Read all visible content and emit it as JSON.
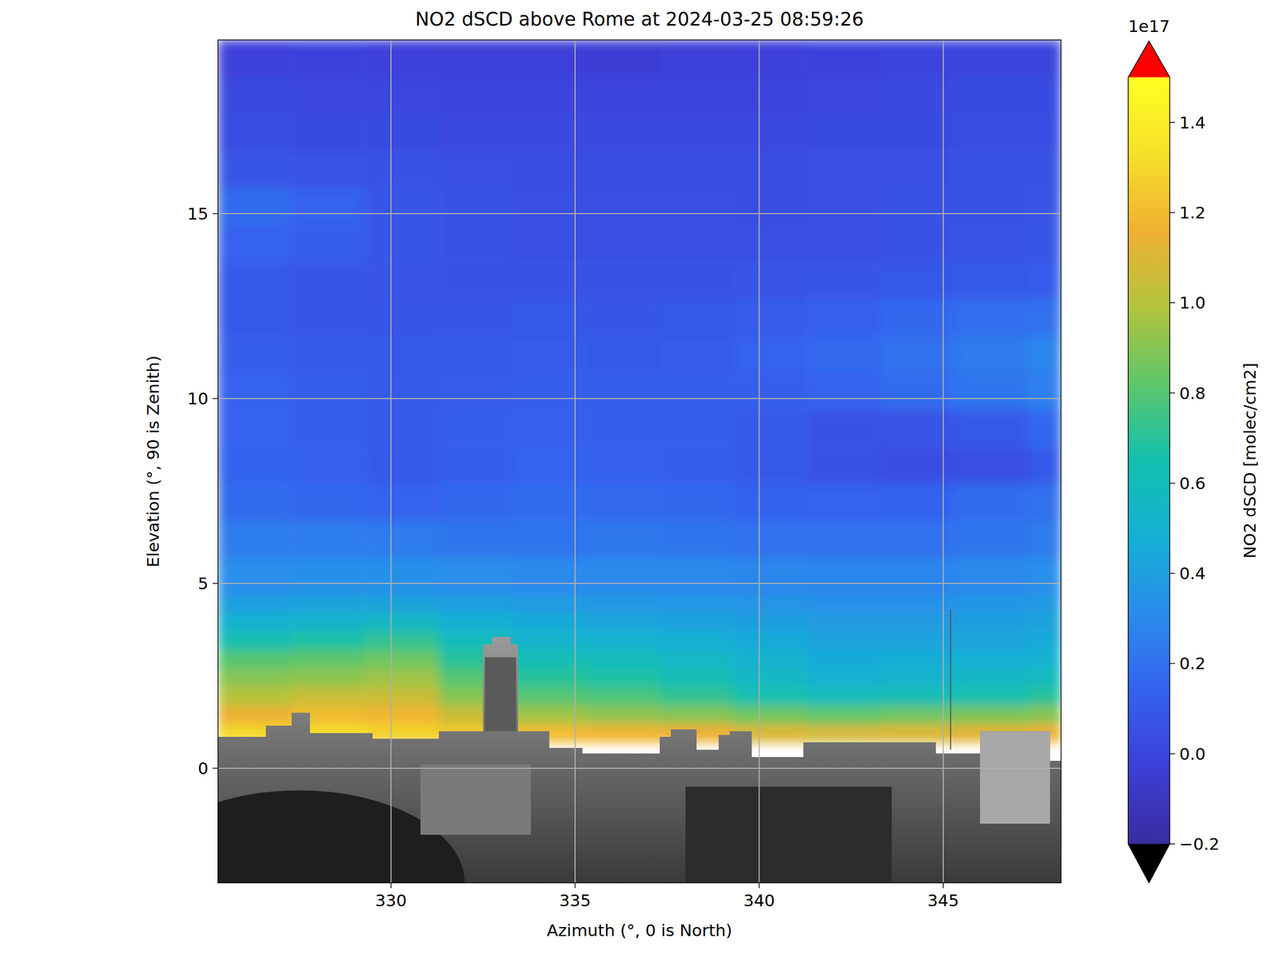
{
  "chart_data": {
    "type": "heatmap",
    "title": "NO2 dSCD above Rome at 2024-03-25 08:59:26",
    "x_label": "Azimuth (°, 0 is North)",
    "y_label": "Elevation (°, 90 is Zenith)",
    "xlim": [
      325.3,
      348.2
    ],
    "ylim": [
      -3.1,
      19.7
    ],
    "xticks": [
      330,
      335,
      340,
      345
    ],
    "yticks": [
      0,
      5,
      10,
      15
    ],
    "grid": true,
    "x_edges": [
      325.3,
      327.3,
      329.3,
      331.3,
      333.3,
      335.3,
      337.3,
      339.3,
      341.3,
      343.3,
      345.3,
      347.3,
      348.2
    ],
    "y_edges": [
      0.7,
      1.2,
      1.7,
      2.2,
      2.7,
      3.2,
      3.7,
      4.2,
      4.7,
      5.7,
      6.7,
      7.7,
      8.7,
      9.7,
      10.7,
      11.7,
      12.7,
      13.7,
      14.7,
      15.7,
      16.7,
      17.7,
      18.7,
      19.7
    ],
    "values": [
      [
        1.3,
        1.32,
        1.28,
        1.25,
        1.2,
        1.18,
        1.15,
        1.1,
        1.08,
        1.1,
        1.12,
        1.15
      ],
      [
        1.15,
        1.2,
        1.18,
        1.05,
        0.95,
        0.92,
        0.9,
        0.85,
        0.82,
        0.85,
        0.88,
        0.9
      ],
      [
        1.0,
        1.05,
        1.05,
        0.9,
        0.8,
        0.78,
        0.72,
        0.65,
        0.6,
        0.62,
        0.65,
        0.7
      ],
      [
        0.9,
        0.92,
        0.95,
        0.8,
        0.7,
        0.68,
        0.62,
        0.55,
        0.5,
        0.52,
        0.55,
        0.58
      ],
      [
        0.8,
        0.82,
        0.85,
        0.7,
        0.62,
        0.6,
        0.55,
        0.5,
        0.45,
        0.47,
        0.48,
        0.5
      ],
      [
        0.65,
        0.68,
        0.72,
        0.6,
        0.52,
        0.5,
        0.48,
        0.45,
        0.42,
        0.42,
        0.43,
        0.45
      ],
      [
        0.5,
        0.52,
        0.55,
        0.48,
        0.45,
        0.43,
        0.42,
        0.4,
        0.38,
        0.38,
        0.4,
        0.42
      ],
      [
        0.4,
        0.42,
        0.42,
        0.4,
        0.38,
        0.37,
        0.36,
        0.35,
        0.34,
        0.34,
        0.36,
        0.38
      ],
      [
        0.32,
        0.33,
        0.33,
        0.32,
        0.3,
        0.3,
        0.3,
        0.29,
        0.28,
        0.28,
        0.3,
        0.32
      ],
      [
        0.25,
        0.25,
        0.24,
        0.22,
        0.22,
        0.23,
        0.22,
        0.2,
        0.2,
        0.2,
        0.22,
        0.25
      ],
      [
        0.18,
        0.16,
        0.14,
        0.16,
        0.18,
        0.17,
        0.16,
        0.15,
        0.14,
        0.15,
        0.18,
        0.2
      ],
      [
        0.15,
        0.13,
        0.1,
        0.12,
        0.14,
        0.13,
        0.12,
        0.1,
        0.06,
        0.04,
        0.05,
        0.1
      ],
      [
        0.14,
        0.12,
        0.1,
        0.12,
        0.13,
        0.12,
        0.12,
        0.1,
        0.06,
        0.07,
        0.1,
        0.16
      ],
      [
        0.14,
        0.12,
        0.1,
        0.11,
        0.12,
        0.12,
        0.12,
        0.12,
        0.14,
        0.18,
        0.22,
        0.26
      ],
      [
        0.12,
        0.1,
        0.09,
        0.1,
        0.11,
        0.1,
        0.11,
        0.14,
        0.17,
        0.2,
        0.24,
        0.28
      ],
      [
        0.1,
        0.08,
        0.08,
        0.08,
        0.09,
        0.08,
        0.09,
        0.11,
        0.13,
        0.16,
        0.19,
        0.2
      ],
      [
        0.1,
        0.08,
        0.07,
        0.06,
        0.06,
        0.06,
        0.06,
        0.07,
        0.08,
        0.09,
        0.1,
        0.11
      ],
      [
        0.14,
        0.12,
        0.08,
        0.06,
        0.05,
        0.05,
        0.05,
        0.05,
        0.05,
        0.06,
        0.07,
        0.08
      ],
      [
        0.18,
        0.14,
        0.08,
        0.06,
        0.05,
        0.05,
        0.05,
        0.04,
        0.05,
        0.06,
        0.06,
        0.07
      ],
      [
        0.08,
        0.07,
        0.06,
        0.05,
        0.04,
        0.04,
        0.04,
        0.04,
        0.05,
        0.05,
        0.06,
        0.06
      ],
      [
        0.04,
        0.03,
        0.03,
        0.02,
        0.02,
        0.02,
        0.02,
        0.02,
        0.03,
        0.03,
        0.04,
        0.04
      ],
      [
        0.02,
        0.01,
        0.01,
        0.0,
        0.0,
        0.0,
        0.0,
        0.0,
        0.01,
        0.02,
        0.03,
        0.03
      ],
      [
        -0.02,
        -0.01,
        -0.02,
        -0.03,
        -0.03,
        -0.04,
        -0.03,
        -0.02,
        -0.01,
        0.0,
        0.0,
        0.0
      ]
    ],
    "colorbar": {
      "label": "NO2 dSCD [molec/cm2]",
      "offset_label": "1e17",
      "range": [
        -0.2,
        1.5
      ],
      "ticks": [
        {
          "value": -0.2,
          "label": "−0.2"
        },
        {
          "value": 0,
          "label": "0.0"
        },
        0.2,
        0.4,
        0.6,
        0.8,
        {
          "value": 1,
          "label": "1.0"
        },
        1.2,
        1.4
      ],
      "colors": [
        "#3a2c9e",
        "#3c3fd8",
        "#3462ee",
        "#2a8cec",
        "#14b0d4",
        "#12c0b0",
        "#5ec66a",
        "#b2c43c",
        "#f0b033",
        "#f6e028",
        "#ffff22"
      ],
      "under_color": "#000000",
      "over_color": "#ff0000"
    }
  }
}
